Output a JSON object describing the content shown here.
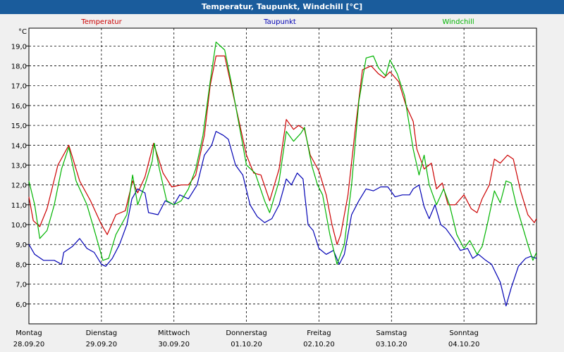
{
  "window": {
    "title": "Temperatur, Taupunkt, Windchill [°C]"
  },
  "chart_data": {
    "type": "line",
    "title": "Temperatur, Taupunkt, Windchill [°C]",
    "ylabel": "°C",
    "ylim": [
      5.0,
      19.9
    ],
    "xlim": [
      0,
      7
    ],
    "grid": true,
    "yticks": [
      6.0,
      7.0,
      8.0,
      9.0,
      10.0,
      11.0,
      12.0,
      13.0,
      14.0,
      15.0,
      16.0,
      17.0,
      18.0,
      19.0
    ],
    "ytick_labels": [
      "6,0",
      "7,0",
      "8,0",
      "9,0",
      "10,0",
      "11,0",
      "12,0",
      "13,0",
      "14,0",
      "15,0",
      "16,0",
      "17,0",
      "18,0",
      "19,0"
    ],
    "day_labels": [
      {
        "day": "Montag",
        "date": "28.09.20"
      },
      {
        "day": "Dienstag",
        "date": "29.09.20"
      },
      {
        "day": "Mittwoch",
        "date": "30.09.20"
      },
      {
        "day": "Donnerstag",
        "date": "01.10.20"
      },
      {
        "day": "Freitag",
        "date": "02.10.20"
      },
      {
        "day": "Samstag",
        "date": "03.10.20"
      },
      {
        "day": "Sonntag",
        "date": "04.10.20"
      }
    ],
    "colors": {
      "Temperatur": "#cc0000",
      "Taupunkt": "#0000b4",
      "Windchill": "#00b400"
    },
    "series": [
      {
        "name": "Temperatur",
        "points": [
          [
            0,
            11.4
          ],
          [
            0.06,
            10.2
          ],
          [
            0.15,
            9.9
          ],
          [
            0.25,
            10.8
          ],
          [
            0.4,
            13.0
          ],
          [
            0.55,
            14.0
          ],
          [
            0.7,
            12.2
          ],
          [
            0.85,
            11.2
          ],
          [
            1.0,
            10.0
          ],
          [
            1.08,
            9.5
          ],
          [
            1.2,
            10.5
          ],
          [
            1.33,
            10.7
          ],
          [
            1.43,
            12.2
          ],
          [
            1.5,
            11.6
          ],
          [
            1.6,
            12.4
          ],
          [
            1.72,
            14.1
          ],
          [
            1.85,
            12.6
          ],
          [
            1.97,
            11.9
          ],
          [
            2.1,
            12.0
          ],
          [
            2.2,
            12.0
          ],
          [
            2.3,
            12.5
          ],
          [
            2.42,
            14.5
          ],
          [
            2.5,
            17.0
          ],
          [
            2.58,
            18.5
          ],
          [
            2.7,
            18.5
          ],
          [
            2.85,
            16.0
          ],
          [
            3.0,
            13.5
          ],
          [
            3.1,
            12.6
          ],
          [
            3.2,
            12.5
          ],
          [
            3.32,
            11.2
          ],
          [
            3.45,
            12.8
          ],
          [
            3.55,
            15.3
          ],
          [
            3.65,
            14.8
          ],
          [
            3.72,
            15.0
          ],
          [
            3.8,
            14.8
          ],
          [
            3.88,
            13.5
          ],
          [
            4.0,
            12.7
          ],
          [
            4.1,
            11.5
          ],
          [
            4.18,
            10.0
          ],
          [
            4.25,
            9.0
          ],
          [
            4.3,
            9.5
          ],
          [
            4.4,
            11.5
          ],
          [
            4.5,
            14.8
          ],
          [
            4.6,
            17.8
          ],
          [
            4.72,
            18.0
          ],
          [
            4.82,
            17.6
          ],
          [
            4.9,
            17.4
          ],
          [
            4.98,
            17.7
          ],
          [
            5.1,
            17.2
          ],
          [
            5.2,
            16.0
          ],
          [
            5.3,
            15.2
          ],
          [
            5.35,
            13.8
          ],
          [
            5.45,
            12.8
          ],
          [
            5.55,
            13.1
          ],
          [
            5.62,
            11.8
          ],
          [
            5.7,
            12.1
          ],
          [
            5.78,
            11.0
          ],
          [
            5.88,
            11.0
          ],
          [
            6.0,
            11.5
          ],
          [
            6.1,
            10.8
          ],
          [
            6.18,
            10.6
          ],
          [
            6.25,
            11.3
          ],
          [
            6.35,
            12.0
          ],
          [
            6.42,
            13.3
          ],
          [
            6.5,
            13.1
          ],
          [
            6.6,
            13.5
          ],
          [
            6.68,
            13.3
          ],
          [
            6.78,
            11.7
          ],
          [
            6.88,
            10.5
          ],
          [
            6.97,
            10.1
          ],
          [
            7.0,
            10.3
          ]
        ]
      },
      {
        "name": "Taupunkt",
        "points": [
          [
            0,
            9.0
          ],
          [
            0.08,
            8.5
          ],
          [
            0.2,
            8.2
          ],
          [
            0.35,
            8.2
          ],
          [
            0.45,
            8.0
          ],
          [
            0.48,
            8.6
          ],
          [
            0.6,
            8.9
          ],
          [
            0.7,
            9.3
          ],
          [
            0.8,
            8.8
          ],
          [
            0.9,
            8.6
          ],
          [
            1.0,
            8.0
          ],
          [
            1.06,
            7.9
          ],
          [
            1.15,
            8.3
          ],
          [
            1.25,
            9.0
          ],
          [
            1.35,
            10.0
          ],
          [
            1.42,
            11.3
          ],
          [
            1.5,
            11.8
          ],
          [
            1.6,
            11.6
          ],
          [
            1.65,
            10.6
          ],
          [
            1.78,
            10.5
          ],
          [
            1.88,
            11.2
          ],
          [
            2.0,
            11.0
          ],
          [
            2.08,
            11.5
          ],
          [
            2.2,
            11.3
          ],
          [
            2.32,
            12.0
          ],
          [
            2.42,
            13.5
          ],
          [
            2.52,
            14.0
          ],
          [
            2.58,
            14.7
          ],
          [
            2.68,
            14.5
          ],
          [
            2.75,
            14.3
          ],
          [
            2.85,
            13.0
          ],
          [
            2.95,
            12.5
          ],
          [
            3.05,
            11.0
          ],
          [
            3.15,
            10.4
          ],
          [
            3.25,
            10.1
          ],
          [
            3.35,
            10.3
          ],
          [
            3.45,
            11.0
          ],
          [
            3.55,
            12.3
          ],
          [
            3.62,
            12.0
          ],
          [
            3.7,
            12.6
          ],
          [
            3.78,
            12.3
          ],
          [
            3.85,
            10.0
          ],
          [
            3.92,
            9.7
          ],
          [
            4.0,
            8.8
          ],
          [
            4.1,
            8.5
          ],
          [
            4.2,
            8.7
          ],
          [
            4.28,
            8.0
          ],
          [
            4.35,
            8.5
          ],
          [
            4.45,
            10.5
          ],
          [
            4.55,
            11.2
          ],
          [
            4.65,
            11.8
          ],
          [
            4.75,
            11.7
          ],
          [
            4.85,
            11.9
          ],
          [
            4.95,
            11.9
          ],
          [
            5.05,
            11.4
          ],
          [
            5.15,
            11.5
          ],
          [
            5.25,
            11.5
          ],
          [
            5.3,
            11.8
          ],
          [
            5.38,
            12.0
          ],
          [
            5.45,
            10.9
          ],
          [
            5.52,
            10.3
          ],
          [
            5.6,
            11.0
          ],
          [
            5.68,
            10.0
          ],
          [
            5.75,
            9.8
          ],
          [
            5.85,
            9.3
          ],
          [
            5.95,
            8.7
          ],
          [
            6.05,
            8.8
          ],
          [
            6.12,
            8.3
          ],
          [
            6.2,
            8.5
          ],
          [
            6.3,
            8.2
          ],
          [
            6.38,
            8.0
          ],
          [
            6.5,
            7.1
          ],
          [
            6.58,
            5.9
          ],
          [
            6.65,
            6.8
          ],
          [
            6.75,
            7.9
          ],
          [
            6.85,
            8.3
          ],
          [
            6.92,
            8.4
          ],
          [
            7.0,
            8.3
          ]
        ]
      },
      {
        "name": "Windchill",
        "points": [
          [
            0,
            12.2
          ],
          [
            0.08,
            11.0
          ],
          [
            0.15,
            9.3
          ],
          [
            0.25,
            9.7
          ],
          [
            0.35,
            11.0
          ],
          [
            0.45,
            12.8
          ],
          [
            0.55,
            13.9
          ],
          [
            0.65,
            12.2
          ],
          [
            0.8,
            11.0
          ],
          [
            0.92,
            9.5
          ],
          [
            1.02,
            8.2
          ],
          [
            1.1,
            8.3
          ],
          [
            1.2,
            9.5
          ],
          [
            1.35,
            10.5
          ],
          [
            1.43,
            12.5
          ],
          [
            1.5,
            11.0
          ],
          [
            1.6,
            12.0
          ],
          [
            1.7,
            13.2
          ],
          [
            1.73,
            14.1
          ],
          [
            1.8,
            12.8
          ],
          [
            1.9,
            11.2
          ],
          [
            2.0,
            11.0
          ],
          [
            2.1,
            11.2
          ],
          [
            2.2,
            11.8
          ],
          [
            2.3,
            12.8
          ],
          [
            2.4,
            14.5
          ],
          [
            2.5,
            17.2
          ],
          [
            2.58,
            19.2
          ],
          [
            2.7,
            18.8
          ],
          [
            2.8,
            17.0
          ],
          [
            2.9,
            15.0
          ],
          [
            3.0,
            13.0
          ],
          [
            3.12,
            12.6
          ],
          [
            3.25,
            11.2
          ],
          [
            3.32,
            10.6
          ],
          [
            3.45,
            12.2
          ],
          [
            3.55,
            14.7
          ],
          [
            3.65,
            14.2
          ],
          [
            3.75,
            14.6
          ],
          [
            3.8,
            14.9
          ],
          [
            3.9,
            13.0
          ],
          [
            3.98,
            12.0
          ],
          [
            4.05,
            11.5
          ],
          [
            4.15,
            9.5
          ],
          [
            4.25,
            8.0
          ],
          [
            4.35,
            9.0
          ],
          [
            4.45,
            12.0
          ],
          [
            4.55,
            16.2
          ],
          [
            4.65,
            18.4
          ],
          [
            4.75,
            18.5
          ],
          [
            4.82,
            17.9
          ],
          [
            4.92,
            17.5
          ],
          [
            4.98,
            18.3
          ],
          [
            5.08,
            17.6
          ],
          [
            5.18,
            16.5
          ],
          [
            5.3,
            13.8
          ],
          [
            5.38,
            12.5
          ],
          [
            5.45,
            13.5
          ],
          [
            5.52,
            12.0
          ],
          [
            5.62,
            11.0
          ],
          [
            5.72,
            11.8
          ],
          [
            5.8,
            11.0
          ],
          [
            5.9,
            9.5
          ],
          [
            6.0,
            8.8
          ],
          [
            6.08,
            9.2
          ],
          [
            6.18,
            8.5
          ],
          [
            6.25,
            8.9
          ],
          [
            6.32,
            10.0
          ],
          [
            6.42,
            11.7
          ],
          [
            6.5,
            11.1
          ],
          [
            6.58,
            12.2
          ],
          [
            6.65,
            12.1
          ],
          [
            6.72,
            11.0
          ],
          [
            6.8,
            10.0
          ],
          [
            6.88,
            9.0
          ],
          [
            6.95,
            8.2
          ],
          [
            7.0,
            8.6
          ]
        ]
      }
    ]
  }
}
